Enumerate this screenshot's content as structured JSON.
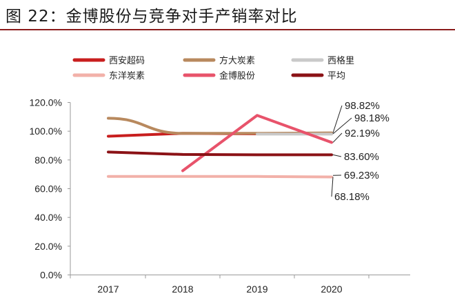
{
  "figure_title": "图 22：金博股份与竞争对手产销率对比",
  "chart_data": {
    "type": "line",
    "categories": [
      "2017",
      "2018",
      "2019",
      "2020"
    ],
    "yticks": [
      "0.0%",
      "20.0%",
      "40.0%",
      "60.0%",
      "80.0%",
      "100.0%",
      "120.0%"
    ],
    "ylim": [
      0,
      120
    ],
    "grid": false,
    "legend_position": "top",
    "series": [
      {
        "name": "西安超码",
        "color": "#c81e1e",
        "values": [
          96.5,
          98.5,
          98.18,
          98.18
        ]
      },
      {
        "name": "方大炭素",
        "color": "#b8895e",
        "values": [
          109,
          98.5,
          98.5,
          98.82
        ]
      },
      {
        "name": "西格里",
        "color": "#c9c9c9",
        "values": [
          null,
          null,
          98.0,
          98.0
        ]
      },
      {
        "name": "东洋炭素",
        "color": "#f2b1a9",
        "values": [
          68.5,
          68.5,
          68.5,
          68.18
        ]
      },
      {
        "name": "金博股份",
        "color": "#e8536b",
        "values": [
          null,
          72.5,
          111,
          92.19
        ]
      },
      {
        "name": "平均",
        "color": "#8b1216",
        "values": [
          85.5,
          83.8,
          83.6,
          83.6
        ]
      }
    ],
    "annotations": [
      {
        "text": "98.82%",
        "value": 98.82
      },
      {
        "text": "98.18%",
        "value": 98.18
      },
      {
        "text": "92.19%",
        "value": 92.19
      },
      {
        "text": "83.60%",
        "value": 83.6
      },
      {
        "text": "69.23%",
        "value": 69.23
      },
      {
        "text": "68.18%",
        "value": 68.18
      }
    ]
  }
}
